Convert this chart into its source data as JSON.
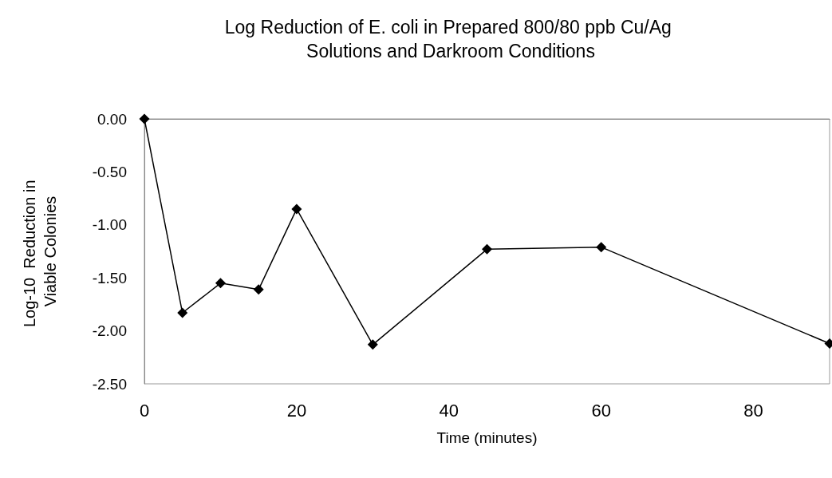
{
  "chart_data": {
    "type": "line",
    "title": "Log Reduction of E. coli in Prepared 800/80 ppb Cu/Ag Solutions and Darkroom Conditions",
    "xlabel": "Time (minutes)",
    "ylabel": "Log-10  Reduction in Viable Colonies",
    "x": [
      0,
      5,
      10,
      15,
      20,
      30,
      45,
      60,
      90
    ],
    "series": [
      {
        "color": "#000000",
        "values": [
          0.0,
          -1.83,
          -1.55,
          -1.61,
          -0.85,
          -2.13,
          -1.23,
          -1.21,
          -2.12
        ]
      }
    ],
    "xlim": [
      0,
      90
    ],
    "xticks": [
      0,
      20,
      40,
      60,
      80
    ],
    "ylim": [
      -2.5,
      0
    ],
    "yticks": [
      {
        "value": -2.5,
        "label": "-2.50"
      },
      {
        "value": -2,
        "label": "-2.00"
      },
      {
        "value": -1.5,
        "label": "-1.50"
      },
      {
        "value": -1,
        "label": "-1.00"
      },
      {
        "value": -0.5,
        "label": "-0.50"
      },
      {
        "value": 0,
        "label": "0.00"
      }
    ],
    "grid": false,
    "marker": "diamond",
    "line_style": "solid"
  }
}
